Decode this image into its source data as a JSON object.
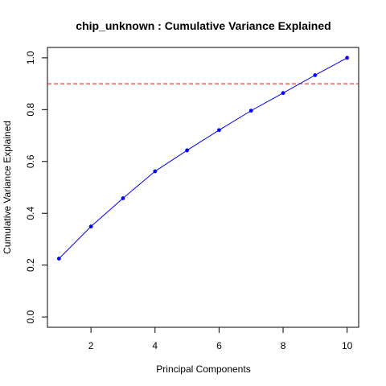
{
  "chart_data": {
    "type": "line",
    "title": "chip_unknown : Cumulative Variance Explained",
    "xlabel": "Principal Components",
    "ylabel": "Cumulative Variance Explained",
    "xlim": [
      0.64,
      10.36
    ],
    "ylim": [
      -0.04,
      1.04
    ],
    "x_ticks": [
      "2",
      "4",
      "6",
      "8",
      "10"
    ],
    "y_ticks": [
      "0.0",
      "0.2",
      "0.4",
      "0.6",
      "0.8",
      "1.0"
    ],
    "x": [
      1,
      2,
      3,
      4,
      5,
      6,
      7,
      8,
      9,
      10
    ],
    "series": [
      {
        "values": [
          0.225,
          0.349,
          0.458,
          0.562,
          0.643,
          0.721,
          0.796,
          0.864,
          0.933,
          1.0
        ],
        "color": "#0000ff"
      }
    ],
    "threshold": {
      "value": 0.9,
      "color": "#ff0000",
      "style": "dashed"
    },
    "grid": false
  }
}
